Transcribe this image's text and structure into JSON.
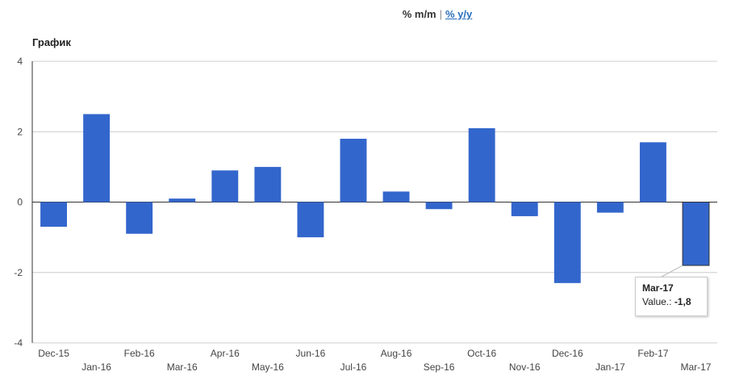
{
  "toggle": {
    "mm_label": "% m/m",
    "separator": "|",
    "yy_label": "% y/y"
  },
  "chart_data": {
    "type": "bar",
    "title": "График",
    "xlabel": "",
    "ylabel": "",
    "categories": [
      "Dec-15",
      "Jan-16",
      "Feb-16",
      "Mar-16",
      "Apr-16",
      "May-16",
      "Jun-16",
      "Jul-16",
      "Aug-16",
      "Sep-16",
      "Oct-16",
      "Nov-16",
      "Dec-16",
      "Jan-17",
      "Feb-17",
      "Mar-17"
    ],
    "values": [
      -0.7,
      2.5,
      -0.9,
      0.1,
      0.9,
      1.0,
      -1.0,
      1.8,
      0.3,
      -0.2,
      2.1,
      -0.4,
      -2.3,
      -0.3,
      1.7,
      -1.8
    ],
    "ylim": [
      -4,
      4
    ],
    "yticks": [
      4,
      2,
      0,
      -2,
      -4
    ],
    "grid": true,
    "bar_color": "#3366cc",
    "highlight_index": 15
  },
  "tooltip": {
    "title": "Mar-17",
    "label": "Value.:",
    "value": "-1,8"
  }
}
